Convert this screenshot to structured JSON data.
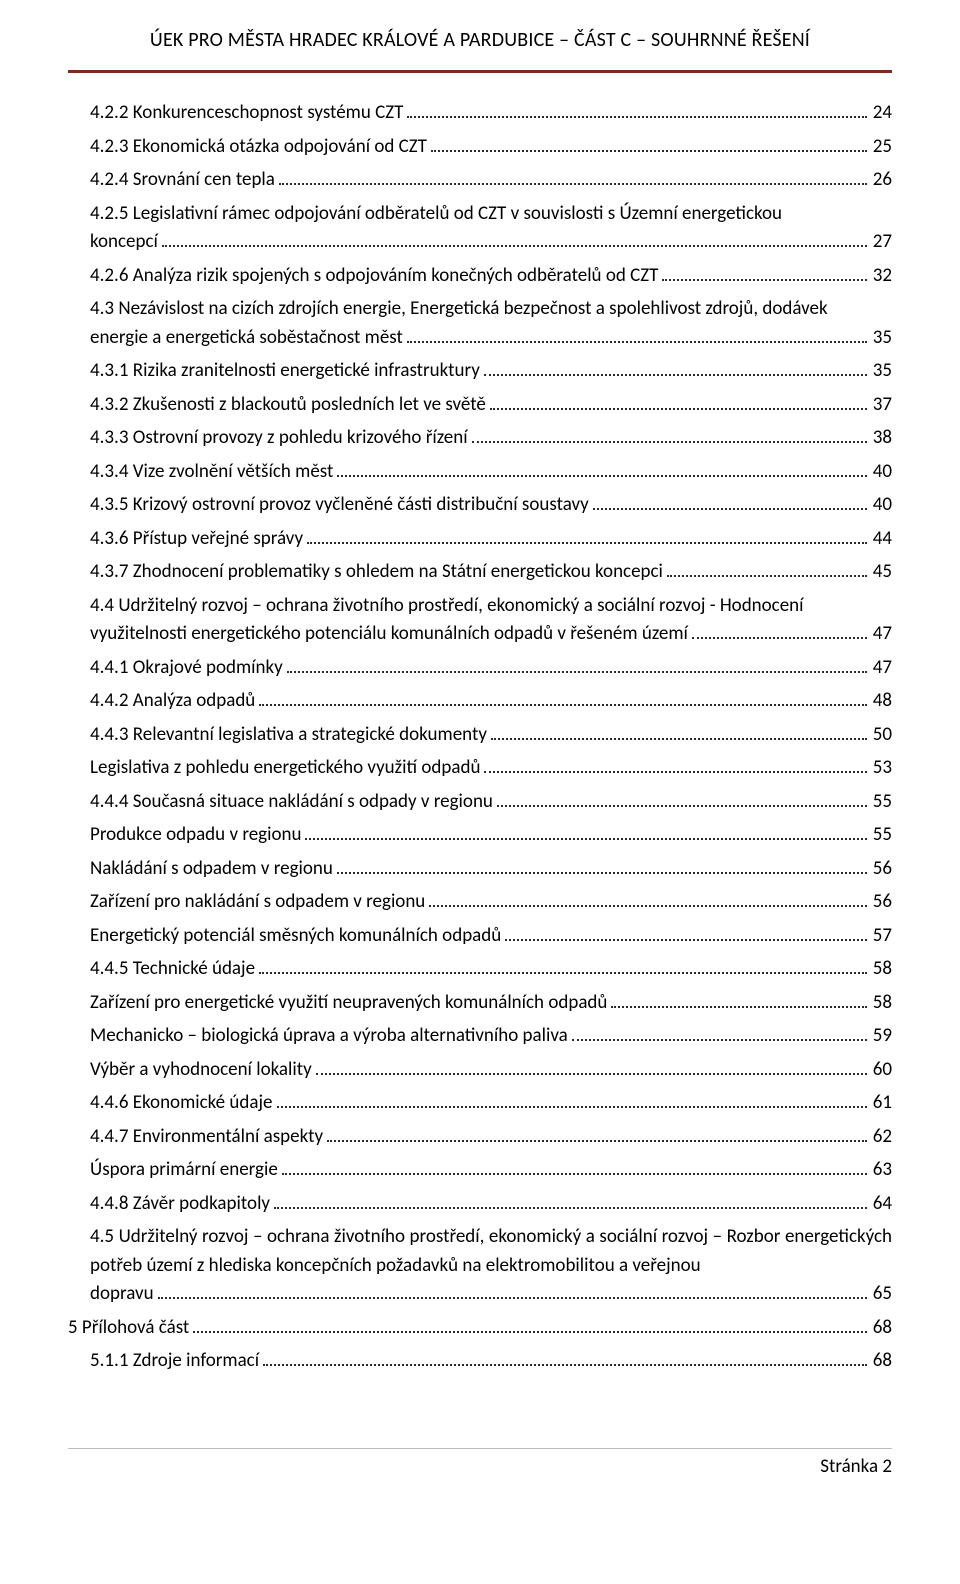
{
  "header": {
    "title": "ÚEK PRO MĚSTA HRADEC KRÁLOVÉ A PARDUBICE – ČÁST C – SOUHRNNÉ ŘEŠENÍ"
  },
  "toc": [
    {
      "kind": "row",
      "indent": 1,
      "label": "4.2.2 Konkurenceschopnost systému CZT",
      "page": "24"
    },
    {
      "kind": "row",
      "indent": 1,
      "label": "4.2.3 Ekonomická otázka odpojování od CZT",
      "page": "25"
    },
    {
      "kind": "row",
      "indent": 1,
      "label": "4.2.4 Srovnání cen tepla",
      "page": "26"
    },
    {
      "kind": "wrap",
      "indent": 1,
      "text": "4.2.5 Legislativní rámec odpojování odběratelů od CZT v souvislosti s Územní energetickou",
      "tail": "koncepcí",
      "page": "27"
    },
    {
      "kind": "row",
      "indent": 1,
      "label": "4.2.6 Analýza rizik spojených s odpojováním konečných odběratelů od CZT",
      "page": "32"
    },
    {
      "kind": "wrap",
      "indent": 1,
      "text": "4.3 Nezávislost na cizích zdrojích energie, Energetická bezpečnost a spolehlivost zdrojů, dodávek",
      "tail": "energie a energetická soběstačnost měst",
      "page": "35"
    },
    {
      "kind": "row",
      "indent": 1,
      "label": "4.3.1 Rizika zranitelnosti energetické infrastruktury",
      "page": "35"
    },
    {
      "kind": "row",
      "indent": 1,
      "label": "4.3.2 Zkušenosti z blackoutů posledních let ve světě",
      "page": "37"
    },
    {
      "kind": "row",
      "indent": 1,
      "label": "4.3.3 Ostrovní provozy z pohledu krizového řízení",
      "page": "38"
    },
    {
      "kind": "row",
      "indent": 1,
      "label": "4.3.4 Vize zvolnění větších měst",
      "page": "40"
    },
    {
      "kind": "row",
      "indent": 1,
      "label": "4.3.5 Krizový ostrovní provoz vyčleněné části distribuční soustavy",
      "page": "40"
    },
    {
      "kind": "row",
      "indent": 1,
      "label": "4.3.6 Přístup veřejné správy",
      "page": "44"
    },
    {
      "kind": "row",
      "indent": 1,
      "label": "4.3.7 Zhodnocení problematiky s ohledem na Státní energetickou koncepci",
      "page": "45"
    },
    {
      "kind": "wrap",
      "indent": 1,
      "text": "4.4 Udržitelný rozvoj – ochrana životního prostředí, ekonomický a sociální rozvoj - Hodnocení",
      "tail": "využitelnosti energetického potenciálu komunálních odpadů v řešeném území",
      "page": "47"
    },
    {
      "kind": "row",
      "indent": 1,
      "label": "4.4.1 Okrajové podmínky",
      "page": "47"
    },
    {
      "kind": "row",
      "indent": 1,
      "label": "4.4.2 Analýza odpadů",
      "page": "48"
    },
    {
      "kind": "row",
      "indent": 1,
      "label": "4.4.3 Relevantní legislativa a strategické dokumenty",
      "page": "50"
    },
    {
      "kind": "row",
      "indent": 1,
      "label": "Legislativa z pohledu energetického využití odpadů",
      "page": "53"
    },
    {
      "kind": "row",
      "indent": 1,
      "label": "4.4.4 Současná situace nakládání s odpady v regionu",
      "page": "55"
    },
    {
      "kind": "row",
      "indent": 1,
      "label": "Produkce odpadu v regionu",
      "page": "55"
    },
    {
      "kind": "row",
      "indent": 1,
      "label": "Nakládání s odpadem v regionu",
      "page": "56"
    },
    {
      "kind": "row",
      "indent": 1,
      "label": "Zařízení pro nakládání s odpadem v regionu",
      "page": "56"
    },
    {
      "kind": "row",
      "indent": 1,
      "label": "Energetický potenciál směsných komunálních odpadů",
      "page": "57"
    },
    {
      "kind": "row",
      "indent": 1,
      "label": "4.4.5 Technické údaje",
      "page": "58"
    },
    {
      "kind": "row",
      "indent": 1,
      "label": "Zařízení pro energetické využití neupravených komunálních odpadů",
      "page": "58"
    },
    {
      "kind": "row",
      "indent": 1,
      "label": "Mechanicko – biologická úprava a výroba alternativního paliva",
      "page": "59"
    },
    {
      "kind": "row",
      "indent": 1,
      "label": "Výběr a vyhodnocení lokality",
      "page": "60"
    },
    {
      "kind": "row",
      "indent": 1,
      "label": "4.4.6 Ekonomické údaje",
      "page": "61"
    },
    {
      "kind": "row",
      "indent": 1,
      "label": "4.4.7 Environmentální aspekty",
      "page": "62"
    },
    {
      "kind": "row",
      "indent": 1,
      "label": "Úspora primární energie",
      "page": "63"
    },
    {
      "kind": "row",
      "indent": 1,
      "label": "4.4.8 Závěr podkapitoly",
      "page": "64"
    },
    {
      "kind": "wrap",
      "indent": 1,
      "text": "4.5 Udržitelný rozvoj – ochrana životního prostředí, ekonomický a sociální rozvoj – Rozbor energetických potřeb území z hlediska koncepčních požadavků na elektromobilitou a veřejnou",
      "tail": "dopravu",
      "page": "65"
    },
    {
      "kind": "row",
      "indent": 0,
      "label": "5 Přílohová část",
      "page": "68"
    },
    {
      "kind": "row",
      "indent": 1,
      "label": "5.1.1 Zdroje informací",
      "page": "68"
    }
  ],
  "footer": {
    "text": "Stránka 2"
  }
}
